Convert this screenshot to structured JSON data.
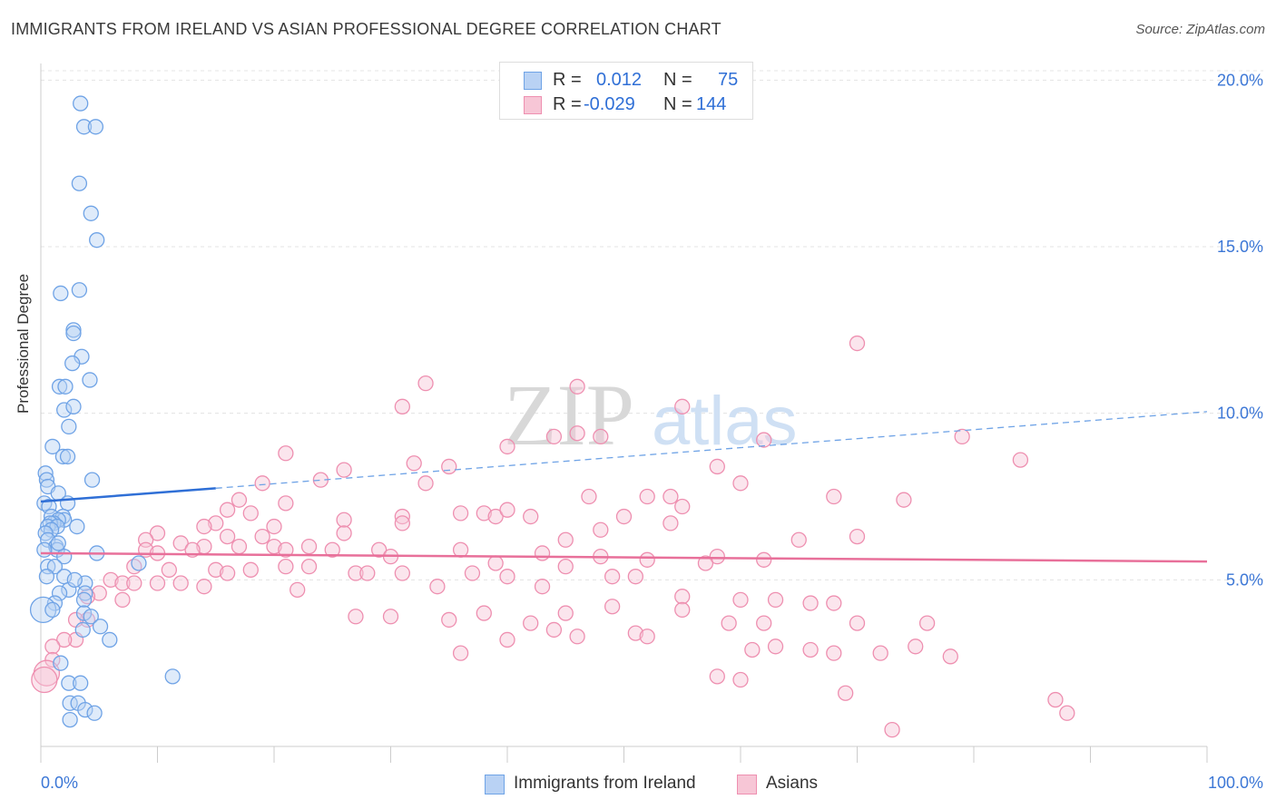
{
  "title": "IMMIGRANTS FROM IRELAND VS ASIAN PROFESSIONAL DEGREE CORRELATION CHART",
  "source": "Source: ZipAtlas.com",
  "watermark": {
    "zip": "ZIP",
    "atlas": "atlas"
  },
  "legend_top": {
    "r_label": "R =",
    "n_label": "N =",
    "rows": [
      {
        "r": "0.012",
        "n": "75"
      },
      {
        "r": "-0.029",
        "n": "144"
      }
    ]
  },
  "chart_data": {
    "type": "scatter",
    "title": "IMMIGRANTS FROM IRELAND VS ASIAN PROFESSIONAL DEGREE CORRELATION CHART",
    "xlabel": "",
    "ylabel": "Professional Degree",
    "xlim": [
      0,
      100
    ],
    "ylim": [
      0,
      20.5
    ],
    "x_tick_labels": [
      "0.0%",
      "100.0%"
    ],
    "y_ticks": [
      5,
      10,
      15,
      20
    ],
    "y_tick_labels": [
      "5.0%",
      "10.0%",
      "15.0%",
      "20.0%"
    ],
    "grid": true,
    "legend_position": "bottom-center",
    "series": [
      {
        "name": "Immigrants from Ireland",
        "color": "#6fa3e6",
        "fill": "#b9d2f4",
        "r": "0.012",
        "n": "75",
        "trend": {
          "solid": [
            [
              0,
              7.35
            ],
            [
              15,
              7.75
            ]
          ],
          "dashed": [
            [
              15,
              7.75
            ],
            [
              100,
              10.05
            ]
          ]
        },
        "points": [
          [
            3.4,
            19.3
          ],
          [
            3.7,
            18.6
          ],
          [
            4.7,
            18.6
          ],
          [
            3.3,
            16.9
          ],
          [
            4.3,
            16.0
          ],
          [
            4.8,
            15.2
          ],
          [
            1.7,
            13.6
          ],
          [
            3.3,
            13.7
          ],
          [
            2.8,
            12.5
          ],
          [
            2.8,
            12.4
          ],
          [
            3.5,
            11.7
          ],
          [
            2.7,
            11.5
          ],
          [
            4.2,
            11.0
          ],
          [
            1.6,
            10.8
          ],
          [
            2.1,
            10.8
          ],
          [
            2.0,
            10.1
          ],
          [
            2.8,
            10.2
          ],
          [
            2.4,
            9.6
          ],
          [
            1.0,
            9.0
          ],
          [
            1.9,
            8.7
          ],
          [
            2.3,
            8.7
          ],
          [
            0.4,
            8.2
          ],
          [
            0.5,
            8.0
          ],
          [
            0.6,
            7.8
          ],
          [
            1.5,
            7.6
          ],
          [
            4.4,
            8.0
          ],
          [
            0.3,
            7.3
          ],
          [
            0.7,
            7.2
          ],
          [
            2.3,
            7.3
          ],
          [
            0.9,
            6.9
          ],
          [
            1.9,
            6.9
          ],
          [
            2.0,
            6.8
          ],
          [
            1.5,
            6.8
          ],
          [
            1.1,
            6.7
          ],
          [
            0.8,
            6.7
          ],
          [
            0.6,
            6.6
          ],
          [
            1.4,
            6.6
          ],
          [
            3.1,
            6.6
          ],
          [
            0.9,
            6.5
          ],
          [
            0.4,
            6.4
          ],
          [
            0.6,
            6.2
          ],
          [
            1.3,
            6.0
          ],
          [
            4.8,
            5.8
          ],
          [
            1.4,
            5.9
          ],
          [
            2.0,
            5.7
          ],
          [
            0.3,
            5.9
          ],
          [
            0.6,
            5.4
          ],
          [
            1.2,
            5.4
          ],
          [
            8.4,
            5.5
          ],
          [
            0.5,
            5.1
          ],
          [
            2.0,
            5.1
          ],
          [
            3.8,
            4.9
          ],
          [
            2.4,
            4.7
          ],
          [
            1.6,
            4.6
          ],
          [
            3.8,
            4.6
          ],
          [
            3.7,
            4.4
          ],
          [
            1.2,
            4.3
          ],
          [
            0.2,
            4.1
          ],
          [
            1.0,
            4.1
          ],
          [
            3.7,
            4.0
          ],
          [
            4.3,
            3.9
          ],
          [
            5.1,
            3.6
          ],
          [
            3.6,
            3.5
          ],
          [
            5.9,
            3.2
          ],
          [
            1.7,
            2.5
          ],
          [
            11.3,
            2.1
          ],
          [
            2.4,
            1.9
          ],
          [
            3.4,
            1.9
          ],
          [
            2.5,
            1.3
          ],
          [
            3.2,
            1.3
          ],
          [
            3.8,
            1.1
          ],
          [
            4.6,
            1.0
          ],
          [
            2.5,
            0.8
          ],
          [
            1.5,
            6.1
          ],
          [
            2.9,
            5.0
          ]
        ]
      },
      {
        "name": "Asians",
        "color": "#ee8fb0",
        "fill": "#f7c6d6",
        "r": "-0.029",
        "n": "144",
        "trend": {
          "solid": [
            [
              0,
              5.8
            ],
            [
              100,
              5.55
            ]
          ]
        },
        "points": [
          [
            70,
            12.1
          ],
          [
            33,
            10.9
          ],
          [
            46,
            10.8
          ],
          [
            31,
            10.2
          ],
          [
            55,
            10.2
          ],
          [
            44,
            9.3
          ],
          [
            46,
            9.4
          ],
          [
            48,
            9.3
          ],
          [
            79,
            9.3
          ],
          [
            62,
            9.2
          ],
          [
            40,
            9.0
          ],
          [
            21,
            8.8
          ],
          [
            32,
            8.5
          ],
          [
            35,
            8.4
          ],
          [
            26,
            8.3
          ],
          [
            58,
            8.4
          ],
          [
            24,
            8.0
          ],
          [
            33,
            7.9
          ],
          [
            19,
            7.9
          ],
          [
            60,
            7.9
          ],
          [
            47,
            7.5
          ],
          [
            52,
            7.5
          ],
          [
            54,
            7.5
          ],
          [
            68,
            7.5
          ],
          [
            74,
            7.4
          ],
          [
            21,
            7.3
          ],
          [
            17,
            7.4
          ],
          [
            55,
            7.2
          ],
          [
            16,
            7.1
          ],
          [
            18,
            7.0
          ],
          [
            36,
            7.0
          ],
          [
            38,
            7.0
          ],
          [
            39,
            6.9
          ],
          [
            40,
            7.1
          ],
          [
            31,
            6.9
          ],
          [
            42,
            6.9
          ],
          [
            50,
            6.9
          ],
          [
            26,
            6.8
          ],
          [
            31,
            6.7
          ],
          [
            15,
            6.7
          ],
          [
            54,
            6.7
          ],
          [
            20,
            6.6
          ],
          [
            14,
            6.6
          ],
          [
            48,
            6.5
          ],
          [
            26,
            6.4
          ],
          [
            10,
            6.4
          ],
          [
            16,
            6.3
          ],
          [
            19,
            6.3
          ],
          [
            70,
            6.3
          ],
          [
            65,
            6.2
          ],
          [
            9,
            6.2
          ],
          [
            45,
            6.2
          ],
          [
            12,
            6.1
          ],
          [
            14,
            6.0
          ],
          [
            20,
            6.0
          ],
          [
            17,
            6.0
          ],
          [
            23,
            6.0
          ],
          [
            13,
            5.9
          ],
          [
            21,
            5.9
          ],
          [
            25,
            5.9
          ],
          [
            29,
            5.9
          ],
          [
            36,
            5.9
          ],
          [
            43,
            5.8
          ],
          [
            9,
            5.9
          ],
          [
            10,
            5.8
          ],
          [
            30,
            5.7
          ],
          [
            48,
            5.7
          ],
          [
            58,
            5.7
          ],
          [
            52,
            5.6
          ],
          [
            62,
            5.6
          ],
          [
            57,
            5.5
          ],
          [
            39,
            5.5
          ],
          [
            45,
            5.4
          ],
          [
            23,
            5.4
          ],
          [
            21,
            5.4
          ],
          [
            8,
            5.4
          ],
          [
            11,
            5.3
          ],
          [
            15,
            5.3
          ],
          [
            18,
            5.3
          ],
          [
            16,
            5.2
          ],
          [
            27,
            5.2
          ],
          [
            28,
            5.2
          ],
          [
            31,
            5.2
          ],
          [
            37,
            5.2
          ],
          [
            40,
            5.1
          ],
          [
            49,
            5.1
          ],
          [
            51,
            5.1
          ],
          [
            6,
            5.0
          ],
          [
            7,
            4.9
          ],
          [
            8,
            4.9
          ],
          [
            10,
            4.9
          ],
          [
            12,
            4.9
          ],
          [
            14,
            4.8
          ],
          [
            22,
            4.7
          ],
          [
            34,
            4.8
          ],
          [
            43,
            4.8
          ],
          [
            5,
            4.6
          ],
          [
            7,
            4.4
          ],
          [
            4,
            4.5
          ],
          [
            55,
            4.5
          ],
          [
            60,
            4.4
          ],
          [
            63,
            4.4
          ],
          [
            66,
            4.3
          ],
          [
            68,
            4.3
          ],
          [
            49,
            4.2
          ],
          [
            55,
            4.1
          ],
          [
            45,
            4.0
          ],
          [
            38,
            4.0
          ],
          [
            27,
            3.9
          ],
          [
            35,
            3.8
          ],
          [
            42,
            3.7
          ],
          [
            4,
            3.8
          ],
          [
            3,
            3.8
          ],
          [
            62,
            3.7
          ],
          [
            59,
            3.7
          ],
          [
            70,
            3.7
          ],
          [
            76,
            3.7
          ],
          [
            44,
            3.5
          ],
          [
            51,
            3.4
          ],
          [
            52,
            3.3
          ],
          [
            46,
            3.3
          ],
          [
            3,
            3.2
          ],
          [
            2,
            3.2
          ],
          [
            1,
            3.0
          ],
          [
            63,
            3.0
          ],
          [
            66,
            2.9
          ],
          [
            75,
            3.0
          ],
          [
            61,
            2.9
          ],
          [
            72,
            2.8
          ],
          [
            68,
            2.8
          ],
          [
            78,
            2.7
          ],
          [
            1,
            2.6
          ],
          [
            0.5,
            2.2
          ],
          [
            0.3,
            2.0
          ],
          [
            58,
            2.1
          ],
          [
            60,
            2.0
          ],
          [
            69,
            1.6
          ],
          [
            87,
            1.4
          ],
          [
            88,
            1.0
          ],
          [
            73,
            0.5
          ],
          [
            30,
            3.9
          ],
          [
            36,
            2.8
          ],
          [
            40,
            3.2
          ],
          [
            84,
            8.6
          ]
        ]
      }
    ]
  }
}
